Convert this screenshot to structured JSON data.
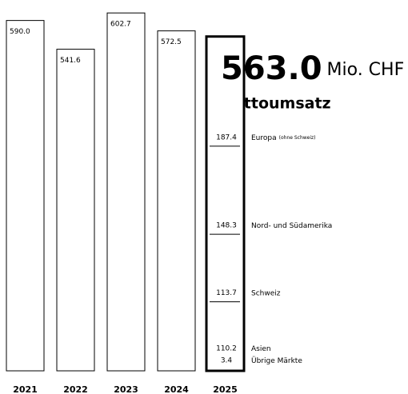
{
  "chart_data": {
    "type": "bar",
    "title": "Nettoumsatz",
    "unit": "Mio. CHF",
    "categories": [
      "2021",
      "2022",
      "2023",
      "2024",
      "2025"
    ],
    "values": [
      590.0,
      541.6,
      602.7,
      572.5,
      563.0
    ],
    "value_labels": [
      "590.0",
      "541.6",
      "602.7",
      "572.5",
      "563.0"
    ],
    "segments": [
      {
        "name": "Europa",
        "note": "(ohne Schweiz)",
        "value": 187.4
      },
      {
        "name": "Nord- und Südamerika",
        "value": 148.3
      },
      {
        "name": "Schweiz",
        "value": 113.7
      },
      {
        "name": "Asien",
        "value": 110.2
      },
      {
        "name": "Übrige Märkte",
        "value": 3.4
      }
    ]
  }
}
